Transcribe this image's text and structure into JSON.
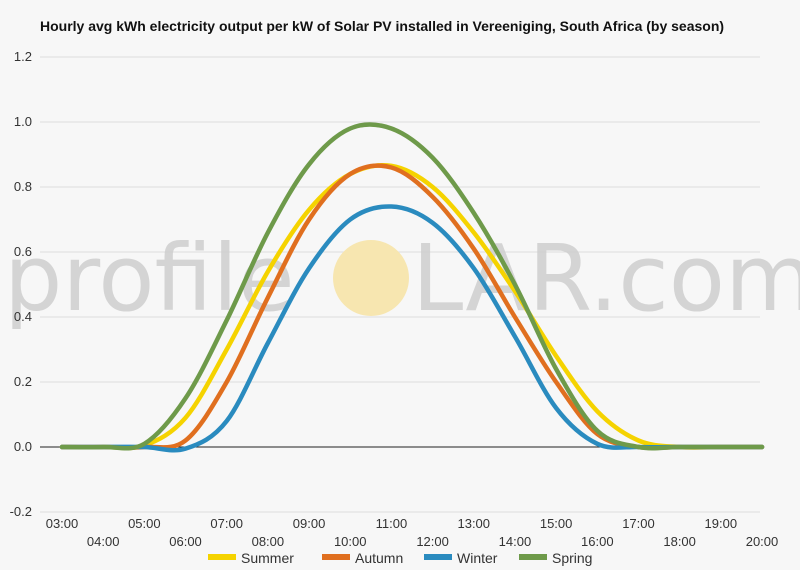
{
  "watermark": {
    "left": "profile",
    "right": "LAR.com",
    "sun_color": "#f7e6b0"
  },
  "chart_data": {
    "type": "line",
    "title": "Hourly avg kWh electricity output per kW of Solar PV installed in Vereeniging, South Africa (by season)",
    "xlabel": "",
    "ylabel": "",
    "x": [
      "03:00",
      "04:00",
      "05:00",
      "06:00",
      "07:00",
      "08:00",
      "09:00",
      "10:00",
      "11:00",
      "12:00",
      "13:00",
      "14:00",
      "15:00",
      "16:00",
      "17:00",
      "18:00",
      "19:00",
      "20:00"
    ],
    "ylim": [
      -0.2,
      1.2
    ],
    "yticks": [
      "1.2",
      "1.0",
      "0.8",
      "0.6",
      "0.4",
      "0.2",
      "0.0",
      "-0.2"
    ],
    "grid": true,
    "legend_position": "bottom",
    "series": [
      {
        "name": "Summer",
        "color": "#f5d300",
        "values": [
          0,
          0,
          0.005,
          0.09,
          0.3,
          0.54,
          0.73,
          0.84,
          0.865,
          0.8,
          0.66,
          0.48,
          0.28,
          0.11,
          0.02,
          0,
          0,
          0
        ]
      },
      {
        "name": "Autumn",
        "color": "#e06f1f",
        "values": [
          0,
          0,
          0,
          0.02,
          0.2,
          0.46,
          0.7,
          0.84,
          0.86,
          0.77,
          0.61,
          0.4,
          0.2,
          0.04,
          0,
          0,
          0,
          0
        ]
      },
      {
        "name": "Winter",
        "color": "#2a8bbf",
        "values": [
          0,
          0,
          0,
          -0.005,
          0.08,
          0.32,
          0.55,
          0.7,
          0.74,
          0.69,
          0.55,
          0.34,
          0.12,
          0.01,
          0,
          0,
          0,
          0
        ]
      },
      {
        "name": "Spring",
        "color": "#6e9a4a",
        "values": [
          0,
          0,
          0.01,
          0.15,
          0.39,
          0.66,
          0.87,
          0.98,
          0.98,
          0.89,
          0.72,
          0.5,
          0.24,
          0.05,
          0,
          0,
          0,
          0
        ]
      }
    ]
  }
}
